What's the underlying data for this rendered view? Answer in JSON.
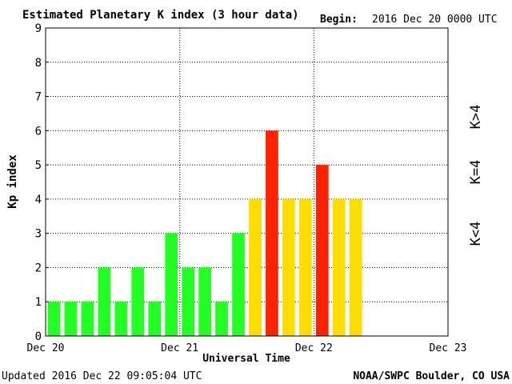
{
  "header": {
    "title": "Estimated Planetary K index (3 hour data)",
    "begin_label": "Begin:",
    "begin_value": "2016 Dec 20 0000 UTC"
  },
  "footer": {
    "updated": "Updated 2016 Dec 22 09:05:04 UTC",
    "credit": "NOAA/SWPC Boulder, CO USA"
  },
  "legend": {
    "high": "K>4",
    "equal": "K=4",
    "low": "K<4"
  },
  "colors": {
    "low": "#22ff22",
    "equal": "#ffdd00",
    "high": "#ff2200",
    "grid": "#000000"
  },
  "chart_data": {
    "type": "bar",
    "title": "Estimated Planetary K index (3 hour data)",
    "xlabel": "Universal Time",
    "ylabel": "Kp index",
    "ylim": [
      0,
      9
    ],
    "yticks": [
      0,
      1,
      2,
      3,
      4,
      5,
      6,
      7,
      8,
      9
    ],
    "xticks": [
      "Dec 20",
      "Dec 21",
      "Dec 22",
      "Dec 23"
    ],
    "x_range_days": 3,
    "bars_per_day": 8,
    "grid": true,
    "series": [
      {
        "values": [
          1,
          1,
          1,
          2,
          1,
          2,
          1,
          3,
          2,
          2,
          1,
          3,
          4,
          6,
          4,
          4,
          5,
          4,
          4
        ]
      }
    ]
  }
}
